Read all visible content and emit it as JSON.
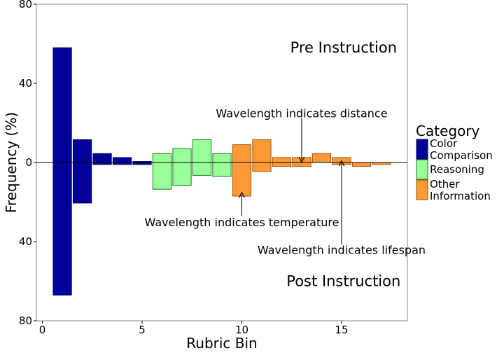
{
  "chart_data": {
    "type": "bar",
    "xlabel": "Rubric Bin",
    "ylabel": "Frequency (%)",
    "xlim": [
      -0.3,
      18.3
    ],
    "ylim": [
      -80,
      80
    ],
    "x_ticks": [
      0,
      5,
      10,
      15
    ],
    "y_ticks": [
      80,
      40,
      0,
      40,
      80
    ],
    "y_tick_values": [
      80,
      40,
      0,
      -40,
      -80
    ],
    "bins": [
      1,
      2,
      3,
      4,
      5,
      6,
      7,
      8,
      9,
      10,
      11,
      12,
      13,
      14,
      15,
      16,
      17
    ],
    "series": [
      {
        "name": "Pre Instruction",
        "values": [
          58,
          11.5,
          4.5,
          2.5,
          0.5,
          4.5,
          7,
          11.5,
          4.5,
          9,
          11.5,
          2.5,
          2.5,
          4.5,
          2.5,
          0,
          0
        ]
      },
      {
        "name": "Post Instruction",
        "values": [
          -67,
          -20.5,
          -1,
          -1,
          -1,
          -13.5,
          -11.5,
          -6.5,
          -7,
          -17,
          -4.5,
          -2,
          -2,
          0,
          -1,
          -2,
          -1
        ]
      }
    ],
    "bin_categories": [
      "Color Comparison",
      "Color Comparison",
      "Color Comparison",
      "Color Comparison",
      "Color Comparison",
      "Reasoning",
      "Reasoning",
      "Reasoning",
      "Reasoning",
      "Other Information",
      "Other Information",
      "Other Information",
      "Other Information",
      "Other Information",
      "Other Information",
      "Other Information",
      "Other Information"
    ],
    "colors": {
      "Color Comparison": "#000099",
      "Reasoning": "#99ff99",
      "Other Information": "#ff9933"
    },
    "region_labels": {
      "top": "Pre Instruction",
      "bottom": "Post Instruction"
    },
    "annotations": [
      {
        "text": "Wavelength indicates distance",
        "text_x": 13,
        "text_y": 25,
        "arrow_from": [
          13,
          22.5
        ],
        "arrow_to": [
          13,
          1.5
        ]
      },
      {
        "text": "Wavelength indicates temperature",
        "text_x": 10,
        "text_y": -30,
        "arrow_from": [
          10,
          -27
        ],
        "arrow_to": [
          10,
          -16.5
        ]
      },
      {
        "text": "Wavelength indicates lifespan",
        "text_x": 15,
        "text_y": -44,
        "arrow_from": [
          15,
          -41.5
        ],
        "arrow_to": [
          15,
          -0.5
        ]
      }
    ],
    "legend": {
      "title": "Category",
      "placement": "right",
      "items": [
        {
          "label": [
            "Color",
            "Comparison"
          ],
          "category": "Color Comparison"
        },
        {
          "label": [
            "Reasoning"
          ],
          "category": "Reasoning"
        },
        {
          "label": [
            "Other",
            "Information"
          ],
          "category": "Other Information"
        }
      ]
    },
    "grid": false
  }
}
